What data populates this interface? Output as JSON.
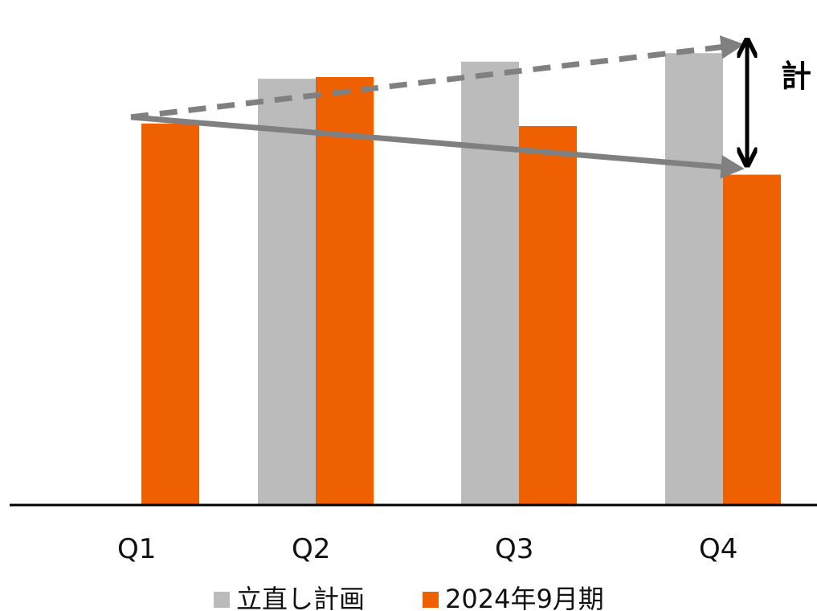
{
  "chart_data": {
    "type": "bar",
    "title": "",
    "xlabel": "",
    "ylabel": "",
    "categories": [
      "Q1",
      "Q2",
      "Q3",
      "Q4"
    ],
    "series": [
      {
        "name": "立直し計画",
        "values": [
          null,
          100,
          104,
          106
        ],
        "color": "#bbbbbb"
      },
      {
        "name": "2024年9月期",
        "values": [
          89.5,
          100.4,
          88.9,
          77.5
        ],
        "color": "#ee6000"
      }
    ],
    "ylim": [
      0,
      110
    ],
    "grid": false,
    "legend": "bottom",
    "annotations": {
      "gap_label": "計",
      "plan_trend": {
        "from": "Q1",
        "to": "Q4",
        "style": "dashed-arrow",
        "color": "#808080"
      },
      "actual_trend": {
        "from": "Q1",
        "to": "Q4",
        "style": "solid-arrow",
        "color": "#808080"
      },
      "gap_arrow": {
        "at": "Q4",
        "style": "double-arrow",
        "color": "#000000"
      }
    }
  }
}
